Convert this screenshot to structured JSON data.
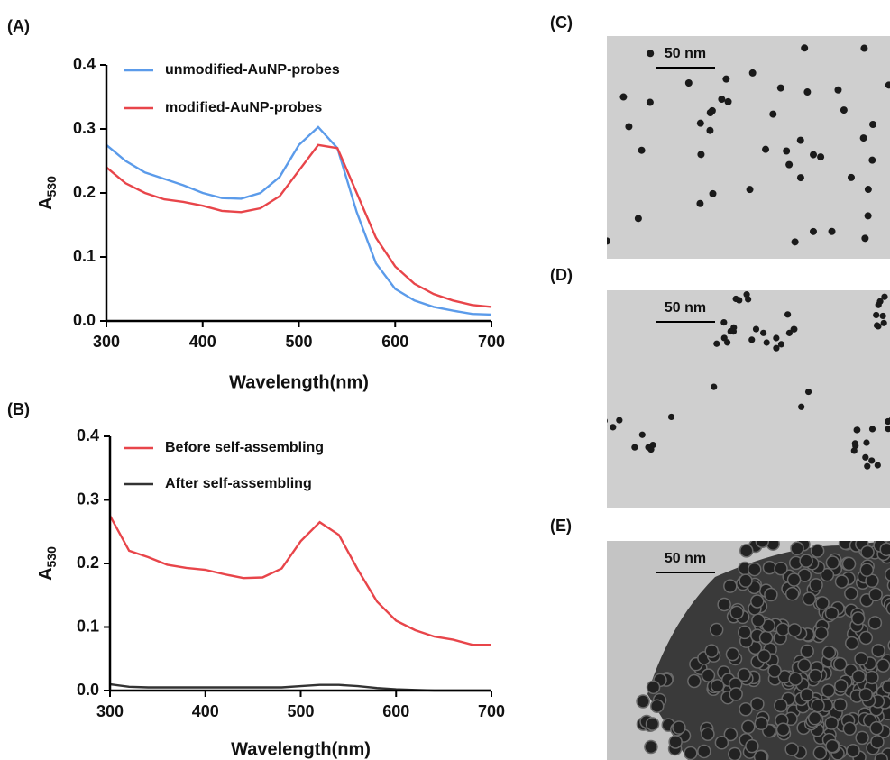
{
  "chart_data": [
    {
      "type": "line",
      "panel_label": "(A)",
      "xlabel": "Wavelength(nm)",
      "ylabel": "A",
      "ylabel_sub": "530",
      "x": [
        300,
        320,
        340,
        360,
        380,
        400,
        420,
        440,
        460,
        480,
        500,
        520,
        540,
        560,
        580,
        600,
        620,
        640,
        660,
        680,
        700
      ],
      "series": [
        {
          "name": "unmodified-AuNP-probes",
          "color": "#5b9bea",
          "values": [
            0.275,
            0.25,
            0.232,
            0.222,
            0.212,
            0.2,
            0.192,
            0.191,
            0.2,
            0.225,
            0.275,
            0.303,
            0.27,
            0.17,
            0.09,
            0.05,
            0.032,
            0.022,
            0.016,
            0.011,
            0.01
          ]
        },
        {
          "name": "modified-AuNP-probes",
          "color": "#e8454a",
          "values": [
            0.24,
            0.215,
            0.2,
            0.19,
            0.186,
            0.18,
            0.172,
            0.17,
            0.176,
            0.195,
            0.235,
            0.275,
            0.27,
            0.2,
            0.13,
            0.085,
            0.058,
            0.042,
            0.032,
            0.025,
            0.022
          ]
        }
      ],
      "xlim": [
        300,
        700
      ],
      "xticks": [
        300,
        400,
        500,
        600,
        700
      ],
      "ylim": [
        0,
        0.4
      ],
      "yticks": [
        {
          "value": 0,
          "label": "0.0"
        },
        0.1,
        0.2,
        0.3,
        0.4
      ]
    },
    {
      "type": "line",
      "panel_label": "(B)",
      "xlabel": "Wavelength(nm)",
      "ylabel": "A",
      "ylabel_sub": "530",
      "x": [
        300,
        320,
        340,
        360,
        380,
        400,
        420,
        440,
        460,
        480,
        500,
        520,
        540,
        560,
        580,
        600,
        620,
        640,
        660,
        680,
        700
      ],
      "series": [
        {
          "name": "Before self-assembling",
          "color": "#e8454a",
          "values": [
            0.275,
            0.22,
            0.21,
            0.198,
            0.193,
            0.19,
            0.183,
            0.177,
            0.178,
            0.192,
            0.235,
            0.265,
            0.245,
            0.19,
            0.14,
            0.11,
            0.095,
            0.085,
            0.08,
            0.072,
            0.072
          ]
        },
        {
          "name": "After self-assembling",
          "color": "#333333",
          "values": [
            0.01,
            0.006,
            0.005,
            0.005,
            0.005,
            0.005,
            0.005,
            0.005,
            0.005,
            0.005,
            0.007,
            0.009,
            0.009,
            0.007,
            0.004,
            0.002,
            0.001,
            0,
            0,
            0,
            0
          ]
        }
      ],
      "xlim": [
        300,
        700
      ],
      "xticks": [
        300,
        400,
        500,
        600,
        700
      ],
      "ylim": [
        0,
        0.4
      ],
      "yticks": [
        {
          "value": 0,
          "label": "0.0"
        },
        0.1,
        0.2,
        0.3,
        0.4
      ]
    }
  ],
  "images": [
    {
      "label": "(C)",
      "scale_bar": "50 nm"
    },
    {
      "label": "(D)",
      "scale_bar": "50 nm"
    },
    {
      "label": "(E)",
      "scale_bar": "50 nm"
    }
  ]
}
